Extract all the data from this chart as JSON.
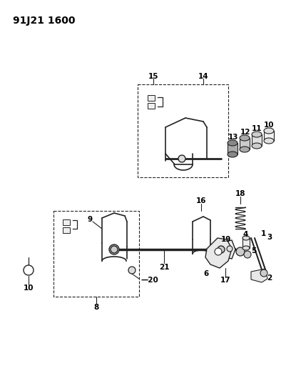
{
  "title": "91J21 1600",
  "background_color": "#ffffff",
  "fig_width": 4.01,
  "fig_height": 5.33,
  "dpi": 100,
  "line_color": "#222222",
  "text_color": "#000000",
  "label_fontsize": 7.5,
  "title_fontsize": 10
}
